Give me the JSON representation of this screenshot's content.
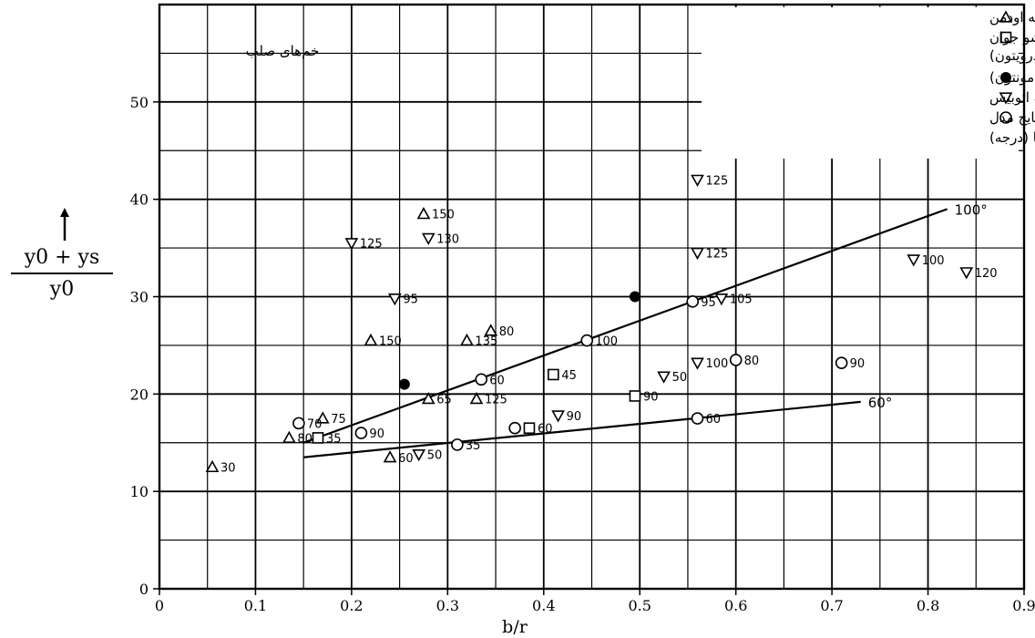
{
  "chart_data": {
    "type": "scatter",
    "xlabel": "b/r",
    "ylabel_numerator": "y0 + ys",
    "ylabel_denominator": "y0",
    "xlim": [
      0,
      0.9
    ],
    "ylim": [
      0,
      60
    ],
    "xticks": [
      "0",
      "0.1",
      "0.2",
      "0.3",
      "0.4",
      "0.5",
      "0.6",
      "0.7",
      "0.8",
      "0.9"
    ],
    "yticks": [
      "0",
      "10",
      "20",
      "30",
      "40",
      "50"
    ],
    "grid": true,
    "legend_position": "top-right",
    "annotation_top": "خم‌های صلب",
    "legend": [
      {
        "marker": "triangle-up",
        "label": "رودخانه اودمن"
      },
      {
        "marker": "square",
        "label": "رودخانه نوم سوشو جوان (دره درویتون)"
      },
      {
        "marker": "filled-circle",
        "label": "رودخانه نوم سوشو جوان (ادمونتون)"
      },
      {
        "marker": "triangle-down",
        "label": "رودخانه اتوبیس"
      },
      {
        "marker": "open-circle",
        "label": "تایج مدل"
      },
      {
        "marker": "none",
        "label": "اعداد زاویه داخلی خم‌ها (درجه)"
      }
    ],
    "series": [
      {
        "marker": "triangle-up",
        "points": [
          {
            "x": 0.055,
            "y": 12.5,
            "label": "30"
          },
          {
            "x": 0.135,
            "y": 15.5,
            "label": "80"
          },
          {
            "x": 0.17,
            "y": 17.5,
            "label": "75"
          },
          {
            "x": 0.22,
            "y": 25.5,
            "label": "150"
          },
          {
            "x": 0.24,
            "y": 13.5,
            "label": "60"
          },
          {
            "x": 0.28,
            "y": 19.5,
            "label": "65"
          },
          {
            "x": 0.32,
            "y": 25.5,
            "label": "135"
          },
          {
            "x": 0.33,
            "y": 19.5,
            "label": "125"
          },
          {
            "x": 0.345,
            "y": 26.5,
            "label": "80"
          },
          {
            "x": 0.275,
            "y": 38.5,
            "label": "150"
          }
        ]
      },
      {
        "marker": "square",
        "points": [
          {
            "x": 0.165,
            "y": 15.5,
            "label": "35"
          },
          {
            "x": 0.385,
            "y": 16.5,
            "label": "60"
          },
          {
            "x": 0.41,
            "y": 22.0,
            "label": "45"
          },
          {
            "x": 0.495,
            "y": 19.8,
            "label": "90"
          }
        ]
      },
      {
        "marker": "filled-circle",
        "points": [
          {
            "x": 0.255,
            "y": 21.0,
            "label": ""
          },
          {
            "x": 0.495,
            "y": 30.0,
            "label": ""
          }
        ]
      },
      {
        "marker": "triangle-down",
        "points": [
          {
            "x": 0.2,
            "y": 35.5,
            "label": "125"
          },
          {
            "x": 0.28,
            "y": 36.0,
            "label": "130"
          },
          {
            "x": 0.245,
            "y": 29.8,
            "label": "95"
          },
          {
            "x": 0.27,
            "y": 13.8,
            "label": "50"
          },
          {
            "x": 0.415,
            "y": 17.8,
            "label": "90"
          },
          {
            "x": 0.525,
            "y": 21.8,
            "label": "50"
          },
          {
            "x": 0.56,
            "y": 42.0,
            "label": "125"
          },
          {
            "x": 0.56,
            "y": 34.5,
            "label": "125"
          },
          {
            "x": 0.585,
            "y": 29.8,
            "label": "105"
          },
          {
            "x": 0.56,
            "y": 23.2,
            "label": "100"
          },
          {
            "x": 0.785,
            "y": 33.8,
            "label": "100"
          },
          {
            "x": 0.84,
            "y": 32.5,
            "label": "120"
          }
        ]
      },
      {
        "marker": "open-circle",
        "points": [
          {
            "x": 0.145,
            "y": 17.0,
            "label": "70"
          },
          {
            "x": 0.21,
            "y": 16.0,
            "label": "90"
          },
          {
            "x": 0.31,
            "y": 14.8,
            "label": "35"
          },
          {
            "x": 0.335,
            "y": 21.5,
            "label": "60"
          },
          {
            "x": 0.37,
            "y": 16.5,
            "label": ""
          },
          {
            "x": 0.445,
            "y": 25.5,
            "label": "100"
          },
          {
            "x": 0.555,
            "y": 29.5,
            "label": "95"
          },
          {
            "x": 0.56,
            "y": 17.5,
            "label": "60"
          },
          {
            "x": 0.6,
            "y": 23.5,
            "label": "80"
          },
          {
            "x": 0.71,
            "y": 23.2,
            "label": "90"
          }
        ]
      }
    ],
    "trend_lines": [
      {
        "label": "100°",
        "x": [
          0.15,
          0.82
        ],
        "y": [
          15.0,
          39.0
        ]
      },
      {
        "label": "60°",
        "x": [
          0.15,
          0.73
        ],
        "y": [
          13.5,
          19.2
        ]
      }
    ]
  }
}
